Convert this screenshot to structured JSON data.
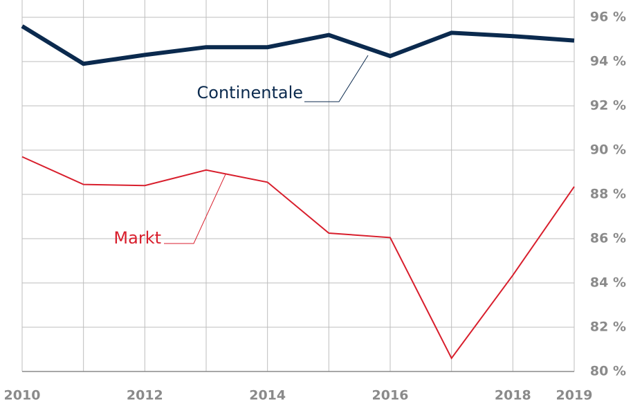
{
  "chart_data": {
    "type": "line",
    "categories": [
      "2010",
      null,
      "2012",
      null,
      "2014",
      null,
      "2016",
      null,
      "2018",
      "2019"
    ],
    "series": [
      {
        "name": "Continentale",
        "color": "#0b2a4e",
        "values": [
          95.6,
          93.9,
          94.3,
          94.65,
          94.65,
          95.2,
          94.25,
          95.3,
          95.15,
          94.95
        ]
      },
      {
        "name": "Markt",
        "color": "#d81e2c",
        "values": [
          89.7,
          88.45,
          88.4,
          89.1,
          88.55,
          86.25,
          86.05,
          80.6,
          84.35,
          88.35
        ]
      }
    ],
    "ylim": [
      80,
      96
    ],
    "yticks": [
      {
        "value": 80,
        "label": "80 %"
      },
      {
        "value": 82,
        "label": "82 %"
      },
      {
        "value": 84,
        "label": "84 %"
      },
      {
        "value": 86,
        "label": "86 %"
      },
      {
        "value": 88,
        "label": "88 %"
      },
      {
        "value": 90,
        "label": "90 %"
      },
      {
        "value": 92,
        "label": "92 %"
      },
      {
        "value": 94,
        "label": "94 %"
      },
      {
        "value": 96,
        "label": "96 %"
      }
    ],
    "grid": true
  }
}
